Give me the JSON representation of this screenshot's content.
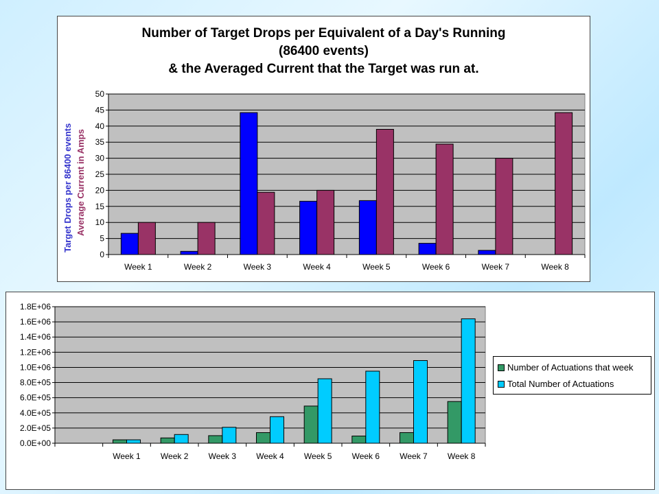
{
  "chart_data": [
    {
      "type": "bar",
      "title_lines": [
        "Number of Target Drops per Equivalent of a Day's Running",
        "(86400 events)",
        "& the Averaged Current that the Target was run at."
      ],
      "ylabels": [
        {
          "text": "Target Drops per 86400 events",
          "color": "#3333cc"
        },
        {
          "text": "Average Current in Amps",
          "color": "#993366"
        }
      ],
      "categories": [
        "Week 1",
        "Week 2",
        "Week 3",
        "Week 4",
        "Week 5",
        "Week 6",
        "Week 7",
        "Week 8"
      ],
      "ylim": [
        0,
        50
      ],
      "yticks": [
        "0",
        "5",
        "10",
        "15",
        "20",
        "25",
        "30",
        "35",
        "40",
        "45",
        "50"
      ],
      "grid": true,
      "legend": "none",
      "series": [
        {
          "values": [
            6.6,
            1.0,
            44.2,
            16.6,
            16.8,
            3.5,
            1.3,
            0
          ],
          "color": "#0000ff"
        },
        {
          "values": [
            10,
            10,
            19.4,
            20,
            39,
            34.4,
            30,
            44.2
          ],
          "color": "#993366"
        }
      ]
    },
    {
      "type": "bar",
      "categories": [
        "",
        "Week 1",
        "Week 2",
        "Week 3",
        "Week 4",
        "Week 5",
        "Week 6",
        "Week 7",
        "Week 8"
      ],
      "ylim": [
        0,
        1800000
      ],
      "yticks": [
        "0.0E+00",
        "2.0E+05",
        "4.0E+05",
        "6.0E+05",
        "8.0E+05",
        "1.0E+06",
        "1.2E+06",
        "1.4E+06",
        "1.6E+06",
        "1.8E+06"
      ],
      "grid": true,
      "legend": "right",
      "series": [
        {
          "name": "Number of Actuations that week",
          "values": [
            0,
            45000,
            70000,
            100000,
            140000,
            490000,
            95000,
            140000,
            550000
          ],
          "color": "#339966"
        },
        {
          "name": "Total Number of Actuations",
          "values": [
            0,
            45000,
            115000,
            210000,
            350000,
            850000,
            950000,
            1090000,
            1640000
          ],
          "color": "#00ccff"
        }
      ]
    }
  ]
}
